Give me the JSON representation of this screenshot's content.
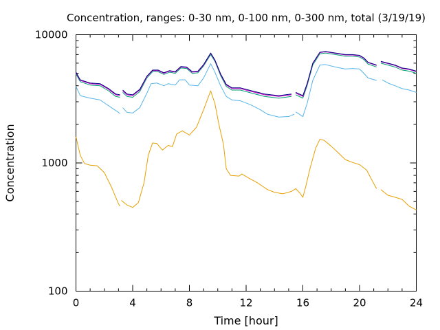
{
  "chart_data": {
    "type": "line",
    "title": "Concentration, ranges: 0-30 nm, 0-100 nm, 0-300 nm, total (3/19/19)",
    "xlabel": "Time [hour]",
    "ylabel": "Concentration",
    "xlim": [
      0,
      24
    ],
    "ylim": [
      100,
      10000
    ],
    "yscale": "log",
    "grid": false,
    "x_ticks": [
      0,
      4,
      8,
      12,
      16,
      20,
      24
    ],
    "x_tick_labels": [
      "0",
      "4",
      "8",
      "12",
      "16",
      "20",
      "24"
    ],
    "y_ticks": [
      100,
      1000,
      10000
    ],
    "y_tick_labels": [
      "100",
      "1000",
      "10000"
    ],
    "series": [
      {
        "color": "#e69f00",
        "segments": [
          [
            [
              0,
              1600
            ],
            [
              0.3,
              1150
            ],
            [
              0.6,
              990
            ],
            [
              1.0,
              960
            ],
            [
              1.5,
              950
            ],
            [
              2.0,
              840
            ],
            [
              2.5,
              650
            ],
            [
              3.0,
              480
            ],
            [
              3.1,
              460
            ]
          ],
          [
            [
              3.2,
              510
            ],
            [
              3.6,
              470
            ],
            [
              4.0,
              450
            ],
            [
              4.4,
              490
            ],
            [
              4.8,
              700
            ],
            [
              5.1,
              1150
            ],
            [
              5.4,
              1430
            ],
            [
              5.7,
              1420
            ],
            [
              6.1,
              1260
            ],
            [
              6.5,
              1370
            ],
            [
              6.8,
              1340
            ],
            [
              7.1,
              1680
            ],
            [
              7.5,
              1780
            ],
            [
              8.0,
              1650
            ],
            [
              8.5,
              1900
            ],
            [
              9.0,
              2600
            ],
            [
              9.5,
              3650
            ],
            [
              9.8,
              2900
            ],
            [
              10.1,
              1950
            ],
            [
              10.4,
              1400
            ],
            [
              10.6,
              900
            ],
            [
              10.9,
              800
            ],
            [
              11.5,
              790
            ],
            [
              11.7,
              820
            ],
            [
              12.2,
              760
            ],
            [
              12.8,
              700
            ],
            [
              13.5,
              620
            ],
            [
              14.0,
              590
            ],
            [
              14.6,
              575
            ],
            [
              15.2,
              600
            ],
            [
              15.5,
              630
            ],
            [
              15.8,
              580
            ],
            [
              16.0,
              540
            ],
            [
              16.2,
              650
            ],
            [
              16.5,
              900
            ],
            [
              16.9,
              1300
            ],
            [
              17.2,
              1530
            ],
            [
              17.5,
              1500
            ],
            [
              18.0,
              1350
            ],
            [
              18.5,
              1200
            ],
            [
              19.0,
              1060
            ],
            [
              19.5,
              1010
            ],
            [
              20.0,
              970
            ],
            [
              20.5,
              880
            ],
            [
              21.0,
              690
            ],
            [
              21.2,
              630
            ]
          ],
          [
            [
              21.5,
              620
            ],
            [
              22.0,
              560
            ],
            [
              22.5,
              540
            ],
            [
              23.0,
              520
            ],
            [
              23.5,
              460
            ],
            [
              24.0,
              430
            ]
          ]
        ]
      },
      {
        "color": "#56b4e9",
        "segments": [
          [
            [
              0,
              3950
            ],
            [
              0.3,
              3350
            ],
            [
              1.0,
              3200
            ],
            [
              1.7,
              3100
            ],
            [
              2.5,
              2700
            ],
            [
              3.0,
              2480
            ],
            [
              3.1,
              2420
            ]
          ],
          [
            [
              3.3,
              2700
            ],
            [
              3.6,
              2480
            ],
            [
              4.0,
              2450
            ],
            [
              4.5,
              2700
            ],
            [
              5.0,
              3500
            ],
            [
              5.3,
              4150
            ],
            [
              5.7,
              4200
            ],
            [
              6.2,
              4000
            ],
            [
              6.5,
              4150
            ],
            [
              7.0,
              4050
            ],
            [
              7.3,
              4450
            ],
            [
              7.7,
              4450
            ],
            [
              8.0,
              4050
            ],
            [
              8.6,
              4000
            ],
            [
              9.0,
              4600
            ],
            [
              9.5,
              5950
            ],
            [
              9.8,
              5100
            ],
            [
              10.2,
              4000
            ],
            [
              10.6,
              3300
            ],
            [
              11.0,
              3100
            ],
            [
              11.6,
              3050
            ],
            [
              12.3,
              2850
            ],
            [
              13.0,
              2600
            ],
            [
              13.5,
              2400
            ],
            [
              14.3,
              2280
            ],
            [
              15.0,
              2300
            ],
            [
              15.4,
              2400
            ]
          ],
          [
            [
              15.5,
              2500
            ],
            [
              16.0,
              2300
            ],
            [
              16.3,
              2900
            ],
            [
              16.7,
              4400
            ],
            [
              17.2,
              5800
            ],
            [
              17.6,
              5850
            ],
            [
              18.3,
              5600
            ],
            [
              19.0,
              5400
            ],
            [
              19.5,
              5450
            ],
            [
              20.0,
              5400
            ],
            [
              20.3,
              5000
            ],
            [
              20.6,
              4600
            ],
            [
              21.2,
              4400
            ]
          ],
          [
            [
              21.6,
              4450
            ],
            [
              22.0,
              4200
            ],
            [
              22.5,
              4000
            ],
            [
              23.0,
              3800
            ],
            [
              23.5,
              3700
            ],
            [
              24.0,
              3550
            ]
          ]
        ]
      },
      {
        "color": "#009e73",
        "segments": [
          [
            [
              0,
              4950
            ],
            [
              0.3,
              4300
            ],
            [
              1.0,
              4050
            ],
            [
              1.7,
              4000
            ],
            [
              2.3,
              3650
            ],
            [
              2.8,
              3300
            ],
            [
              3.1,
              3250
            ]
          ],
          [
            [
              3.3,
              3550
            ],
            [
              3.6,
              3300
            ],
            [
              4.0,
              3250
            ],
            [
              4.5,
              3600
            ],
            [
              5.0,
              4600
            ],
            [
              5.4,
              5150
            ],
            [
              5.8,
              5150
            ],
            [
              6.2,
              4900
            ],
            [
              6.6,
              5100
            ],
            [
              7.0,
              5000
            ],
            [
              7.4,
              5500
            ],
            [
              7.8,
              5450
            ],
            [
              8.2,
              5000
            ],
            [
              8.6,
              5050
            ],
            [
              9.0,
              5700
            ],
            [
              9.5,
              7000
            ],
            [
              9.8,
              6200
            ],
            [
              10.2,
              4800
            ],
            [
              10.6,
              3950
            ],
            [
              11.0,
              3700
            ],
            [
              11.6,
              3700
            ],
            [
              12.4,
              3500
            ],
            [
              13.3,
              3300
            ],
            [
              14.3,
              3200
            ],
            [
              15.2,
              3300
            ]
          ],
          [
            [
              15.5,
              3400
            ],
            [
              16.0,
              3200
            ],
            [
              16.3,
              4000
            ],
            [
              16.7,
              5800
            ],
            [
              17.2,
              7100
            ],
            [
              17.6,
              7200
            ],
            [
              18.3,
              7000
            ],
            [
              19.0,
              6800
            ],
            [
              19.5,
              6800
            ],
            [
              20.0,
              6700
            ],
            [
              20.3,
              6400
            ],
            [
              20.6,
              5900
            ],
            [
              21.2,
              5600
            ]
          ],
          [
            [
              21.5,
              6000
            ],
            [
              22.0,
              5800
            ],
            [
              22.5,
              5600
            ],
            [
              23.0,
              5300
            ],
            [
              23.5,
              5200
            ],
            [
              24.0,
              5000
            ]
          ]
        ]
      },
      {
        "color": "#cc00cc",
        "segments": [
          [
            [
              0,
              5050
            ],
            [
              0.3,
              4400
            ],
            [
              1.0,
              4150
            ],
            [
              1.7,
              4100
            ],
            [
              2.3,
              3750
            ],
            [
              2.8,
              3400
            ],
            [
              3.1,
              3350
            ]
          ],
          [
            [
              3.3,
              3650
            ],
            [
              3.6,
              3400
            ],
            [
              4.0,
              3350
            ],
            [
              4.5,
              3700
            ],
            [
              5.0,
              4700
            ],
            [
              5.4,
              5250
            ],
            [
              5.8,
              5250
            ],
            [
              6.2,
              5000
            ],
            [
              6.6,
              5200
            ],
            [
              7.0,
              5100
            ],
            [
              7.4,
              5600
            ],
            [
              7.8,
              5550
            ],
            [
              8.2,
              5100
            ],
            [
              8.6,
              5150
            ],
            [
              9.0,
              5800
            ],
            [
              9.5,
              7150
            ],
            [
              9.8,
              6300
            ],
            [
              10.2,
              4900
            ],
            [
              10.6,
              4050
            ],
            [
              11.0,
              3800
            ],
            [
              11.6,
              3800
            ],
            [
              12.4,
              3600
            ],
            [
              13.3,
              3400
            ],
            [
              14.3,
              3300
            ],
            [
              15.2,
              3400
            ]
          ],
          [
            [
              15.5,
              3500
            ],
            [
              16.0,
              3300
            ],
            [
              16.3,
              4100
            ],
            [
              16.7,
              5950
            ],
            [
              17.2,
              7250
            ],
            [
              17.6,
              7350
            ],
            [
              18.3,
              7150
            ],
            [
              19.0,
              6950
            ],
            [
              19.5,
              6950
            ],
            [
              20.0,
              6850
            ],
            [
              20.3,
              6550
            ],
            [
              20.6,
              6050
            ],
            [
              21.2,
              5750
            ]
          ],
          [
            [
              21.5,
              6150
            ],
            [
              22.0,
              5950
            ],
            [
              22.5,
              5750
            ],
            [
              23.0,
              5450
            ],
            [
              23.5,
              5350
            ],
            [
              24.0,
              5150
            ]
          ]
        ]
      },
      {
        "color": "#000080",
        "segments": [
          [
            [
              0,
              5100
            ],
            [
              0.3,
              4450
            ],
            [
              1.0,
              4200
            ],
            [
              1.7,
              4150
            ],
            [
              2.3,
              3800
            ],
            [
              2.8,
              3450
            ],
            [
              3.1,
              3400
            ]
          ],
          [
            [
              3.3,
              3700
            ],
            [
              3.6,
              3450
            ],
            [
              4.0,
              3400
            ],
            [
              4.5,
              3750
            ],
            [
              5.0,
              4750
            ],
            [
              5.4,
              5300
            ],
            [
              5.8,
              5300
            ],
            [
              6.2,
              5050
            ],
            [
              6.6,
              5250
            ],
            [
              7.0,
              5150
            ],
            [
              7.4,
              5650
            ],
            [
              7.8,
              5600
            ],
            [
              8.2,
              5150
            ],
            [
              8.6,
              5200
            ],
            [
              9.0,
              5850
            ],
            [
              9.5,
              7200
            ],
            [
              9.8,
              6350
            ],
            [
              10.2,
              4950
            ],
            [
              10.6,
              4100
            ],
            [
              11.0,
              3850
            ],
            [
              11.6,
              3850
            ],
            [
              12.4,
              3650
            ],
            [
              13.3,
              3450
            ],
            [
              14.3,
              3350
            ],
            [
              15.2,
              3450
            ]
          ],
          [
            [
              15.5,
              3550
            ],
            [
              16.0,
              3350
            ],
            [
              16.3,
              4150
            ],
            [
              16.7,
              6000
            ],
            [
              17.2,
              7300
            ],
            [
              17.6,
              7400
            ],
            [
              18.3,
              7200
            ],
            [
              19.0,
              7000
            ],
            [
              19.5,
              7000
            ],
            [
              20.0,
              6900
            ],
            [
              20.3,
              6600
            ],
            [
              20.6,
              6100
            ],
            [
              21.2,
              5800
            ]
          ],
          [
            [
              21.5,
              6200
            ],
            [
              22.0,
              6000
            ],
            [
              22.5,
              5800
            ],
            [
              23.0,
              5500
            ],
            [
              23.5,
              5400
            ],
            [
              24.0,
              5200
            ]
          ]
        ]
      }
    ]
  }
}
